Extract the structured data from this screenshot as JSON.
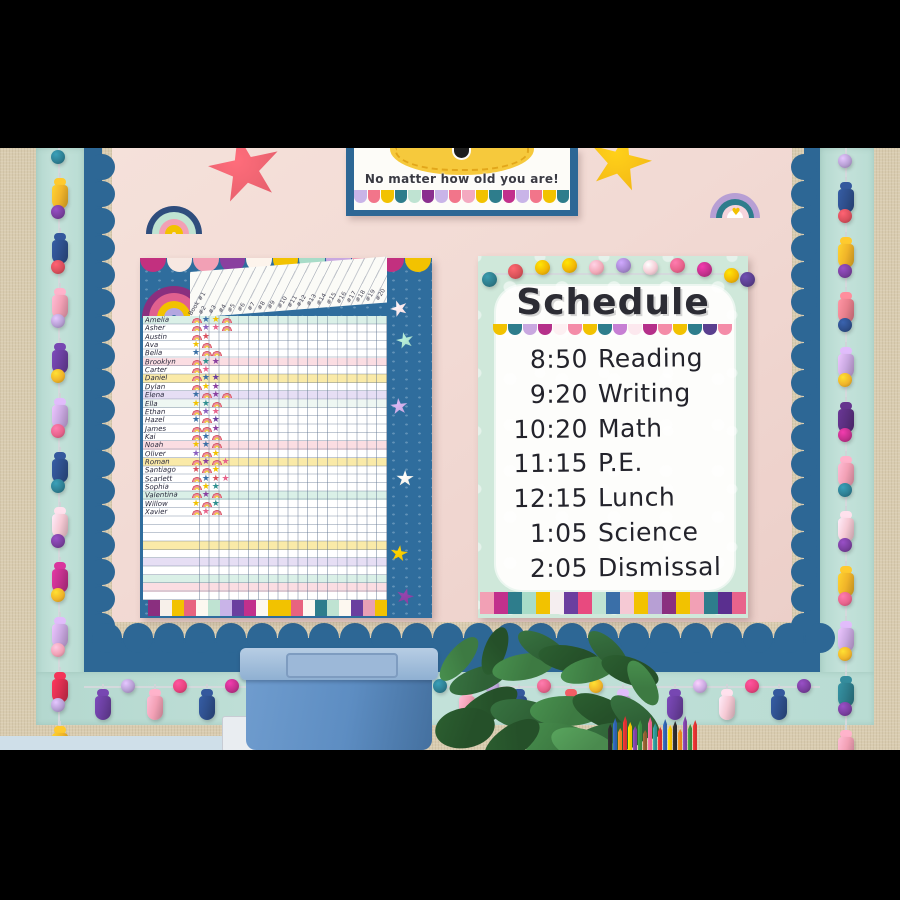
{
  "photo": {
    "wall_color": "#d9ccb0",
    "board_color": "#f3dcd6",
    "border_trim_color": "#2d6795",
    "garland_band_color": "#bfdfd7",
    "string_color": "#d4d9dc"
  },
  "top_poster": {
    "text": "No matter how old you are!",
    "backing_color": "#2d6795",
    "blob_color": "#f6c93c",
    "blob_stitch_color": "#e2a61a",
    "scallops": [
      "#c9b4e8",
      "#f2758a",
      "#f2c200",
      "#2e7d8c",
      "#bfe3d2",
      "#8a2f8f",
      "#c9b4e8",
      "#f2758a",
      "#f4a9c0",
      "#f2c200",
      "#2e7d8c",
      "#c2308c",
      "#c9b4e8",
      "#f2758a",
      "#f2c200",
      "#2e7d8c"
    ]
  },
  "decorations": {
    "star_left_color": "#e8616e",
    "star_right_color": "#f5bb16",
    "rainbow_left_rings": [
      "#2e4d7d",
      "#bfe3d2",
      "#f2a0b5",
      "#f2c200"
    ],
    "rainbow_right_rings": [
      "#b79fd4",
      "#2e7d8c",
      "#f5d4dc",
      "#ffffff"
    ],
    "rainbow_right_heart": "#f2c200",
    "chart_rainbow_rings": [
      "#8a2f7f",
      "#e0608f",
      "#f2c200",
      "#b3a6e0"
    ]
  },
  "chart_poster": {
    "background": "#2f6d9d",
    "top_scallops": [
      "#c2307f",
      "#f7e8e2",
      "#f2a0b5",
      "#8a3f9f",
      "#fdf4ec",
      "#f2c200",
      "#a8dcc8",
      "#c9a8e0",
      "#f2a0b5",
      "#c2307f",
      "#f2c200"
    ],
    "column_headers": [
      "Book #1",
      "#2",
      "#3",
      "#4",
      "#5",
      "#6",
      "#7",
      "#8",
      "#9",
      "#10",
      "#11",
      "#12",
      "#13",
      "#14",
      "#15",
      "#16",
      "#17",
      "#18",
      "#19",
      "#20"
    ],
    "students": [
      {
        "name": "Amelia",
        "tint": "#daf0e7",
        "stickers": [
          "R",
          "S#3a6fa5",
          "S#f2c200",
          "R"
        ]
      },
      {
        "name": "Asher",
        "tint": "#ffffff",
        "stickers": [
          "R",
          "S#8a5fbf",
          "S#e8638c",
          "R"
        ]
      },
      {
        "name": "Austin",
        "tint": "#ffffff",
        "stickers": [
          "R",
          "S#d94f5c"
        ]
      },
      {
        "name": "Ava",
        "tint": "#ffffff",
        "stickers": [
          "S#f2c200",
          "R"
        ]
      },
      {
        "name": "Bella",
        "tint": "#ffffff",
        "stickers": [
          "S#3a6fa5",
          "R",
          "R"
        ]
      },
      {
        "name": "Brooklyn",
        "tint": "#fbdde2",
        "stickers": [
          "R",
          "S#2e8f8f",
          "S#8a3f9f"
        ]
      },
      {
        "name": "Carter",
        "tint": "#ffffff",
        "stickers": [
          "R",
          "S#e8638c"
        ]
      },
      {
        "name": "Daniel",
        "tint": "#faeaa8",
        "stickers": [
          "R",
          "S#3a6fa5",
          "S#6a3f9f"
        ]
      },
      {
        "name": "Dylan",
        "tint": "#ffffff",
        "stickers": [
          "R",
          "S#f2c200",
          "S#8a3f9f"
        ]
      },
      {
        "name": "Elena",
        "tint": "#e6def4",
        "stickers": [
          "S#3a6fa5",
          "R",
          "S#8a3f9f",
          "R"
        ]
      },
      {
        "name": "Ella",
        "tint": "#eef7f2",
        "stickers": [
          "S#f2c200",
          "S#2e8f8f",
          "R"
        ]
      },
      {
        "name": "Ethan",
        "tint": "#ffffff",
        "stickers": [
          "R",
          "S#8a5fbf",
          "S#e8638c"
        ]
      },
      {
        "name": "Hazel",
        "tint": "#ffffff",
        "stickers": [
          "S#3a6fa5",
          "R",
          "S#6a3f9f"
        ]
      },
      {
        "name": "James",
        "tint": "#ffffff",
        "stickers": [
          "R",
          "R",
          "S#8a3f9f"
        ]
      },
      {
        "name": "Kai",
        "tint": "#ffffff",
        "stickers": [
          "R",
          "S#3a6fa5",
          "R"
        ]
      },
      {
        "name": "Noah",
        "tint": "#fbdde2",
        "stickers": [
          "S#f2c200",
          "S#3a6fa5",
          "R"
        ]
      },
      {
        "name": "Oliver",
        "tint": "#ffffff",
        "stickers": [
          "S#8a5fbf",
          "R",
          "S#f2c200"
        ]
      },
      {
        "name": "Roman",
        "tint": "#faeaa8",
        "stickers": [
          "R",
          "S#8a3f9f",
          "R",
          "S#e8638c"
        ]
      },
      {
        "name": "Santiago",
        "tint": "#ffffff",
        "stickers": [
          "S#d94f5c",
          "R",
          "S#f2c200"
        ]
      },
      {
        "name": "Scarlett",
        "tint": "#ffffff",
        "stickers": [
          "R",
          "S#3a6fa5",
          "S#d94f5c",
          "S#e8638c"
        ]
      },
      {
        "name": "Sophia",
        "tint": "#ffffff",
        "stickers": [
          "R",
          "S#f2c200",
          "S#2e8f8f"
        ]
      },
      {
        "name": "Valentina",
        "tint": "#daf0e7",
        "stickers": [
          "R",
          "S#8a3f9f",
          "R"
        ]
      },
      {
        "name": "Willow",
        "tint": "#ffffff",
        "stickers": [
          "S#f2c200",
          "R",
          "S#2e8f8f"
        ]
      },
      {
        "name": "Xavier",
        "tint": "#ffffff",
        "stickers": [
          "R",
          "S#e8638c",
          "R"
        ]
      }
    ],
    "empty_row_tints": [
      "#ffffff",
      "#ffffff",
      "#ffffff",
      "#faeaa8",
      "#ffffff",
      "#e6def4",
      "#ffffff",
      "#daf0e7",
      "#fbdde2",
      "#ffffff"
    ],
    "footer_stripes": [
      "#8a2f7f",
      "#f7f0ea",
      "#f2c200",
      "#e8637f",
      "#fdf8f0",
      "#bfe3d2",
      "#c9b4e8",
      "#6a3f9f",
      "#c2308c",
      "#fdf8f0",
      "#f2c200",
      "#f2c200",
      "#e8637f",
      "#fdf8f0",
      "#2e7d8c",
      "#bfe3d2",
      "#fdf8f0",
      "#6a3f9f",
      "#e8a0b5",
      "#f2c200"
    ],
    "side_stars": [
      "#f7dfe2",
      "#a8dcc8",
      "#c9a8e0",
      "#f4f0e6",
      "#f2c200",
      "#8a3f9f"
    ]
  },
  "schedule_poster": {
    "title": "Schedule",
    "background": "#cfe8da",
    "panel_color": "#fdfdfb",
    "entries": [
      {
        "time": "8:50",
        "subject": "Reading"
      },
      {
        "time": "9:20",
        "subject": "Writing"
      },
      {
        "time": "10:20",
        "subject": "Math"
      },
      {
        "time": "11:15",
        "subject": "P.E."
      },
      {
        "time": "12:15",
        "subject": "Lunch"
      },
      {
        "time": "1:05",
        "subject": "Science"
      },
      {
        "time": "2:05",
        "subject": "Dismissal"
      }
    ],
    "pom_garland": [
      "#2e7d8c",
      "#d9535a",
      "#f2b705",
      "#f2b705",
      "#f2a9b8",
      "#a687d0",
      "#f5cdd6",
      "#e8638c",
      "#c2308c",
      "#f2b705",
      "#5a3f8f"
    ],
    "scallops": [
      "#f2c200",
      "#2e7d8c",
      "#c9a8e0",
      "#b5308a",
      "#fdf0f2",
      "#f48ca8",
      "#f2c200",
      "#2e7d8c",
      "#c77fd4",
      "#fce8ee",
      "#b5308a",
      "#f48ca8",
      "#f2c200",
      "#2e7d8c",
      "#5a3f8f",
      "#f48ca8"
    ],
    "footer_stripes": [
      "#f2a0b5",
      "#c2308c",
      "#2e7d8c",
      "#a8dcc8",
      "#f2c200",
      "#f5eef0",
      "#6a3f9f",
      "#e84a7f",
      "#bfe3d2",
      "#3a6fa8",
      "#f5c9d4",
      "#f2c200",
      "#b79fd4",
      "#8a2f7f",
      "#f2c200",
      "#f2a0b5",
      "#2e7d8c",
      "#5a2f8f",
      "#e8638c"
    ]
  },
  "garlands": {
    "left": [
      "#2e8094",
      "#f0b429",
      "#7a3f9f",
      "#2e4f8c",
      "#d94f5c",
      "#f2a0b5",
      "#b79fd4",
      "#6a3f9f",
      "#f0b429",
      "#c9a8e0",
      "#e8638c",
      "#2e4f8c",
      "#2e8094",
      "#f5c9d4",
      "#7a3f9f",
      "#c2308c",
      "#f0b429",
      "#c9a8e0",
      "#f2a0b5",
      "#d92f4f",
      "#b79fd4",
      "#f0b429"
    ],
    "right": [
      "#b79fd4",
      "#2e4f8c",
      "#d94f5c",
      "#f0b429",
      "#7a3f9f",
      "#e87f8c",
      "#2e4f8c",
      "#c9a8e0",
      "#f0b429",
      "#5a2f7f",
      "#c2308c",
      "#f2a0b5",
      "#2e8094",
      "#f5c9d4",
      "#7a3f9f",
      "#f0b429",
      "#e8638c",
      "#c9a8e0",
      "#f0b429",
      "#2e7d8c",
      "#7a3f9f",
      "#f2a0b5"
    ],
    "bottom": [
      "#6a3f9f",
      "#b79fd4",
      "#f2a0b5",
      "#e8437f",
      "#2e4f8c",
      "#c2308c",
      "#f0b429",
      "#d94f5c",
      "#f5c9d4",
      "#7a3f9f",
      "#c9a8e0",
      "#f0b429",
      "#d9535a",
      "#2e8094",
      "#f2a0b5",
      "#b79fd4",
      "#2e4f8c",
      "#e8638c",
      "#d9535a",
      "#f0b429",
      "#c9a8e0",
      "#f0b429",
      "#6a3f9f",
      "#c9a8e0",
      "#f5c9d4",
      "#e8437f",
      "#2e4f8c",
      "#7a3f9f"
    ]
  },
  "desk": {
    "bin_body_color": "#5d8dc2",
    "bin_lid_color": "#9cb8d8",
    "table_color": "#cfdfe9",
    "tray_color": "#e9edf1",
    "leaf_colors": [
      "#2f6136",
      "#3d7a42",
      "#255029",
      "#4a8a4e"
    ],
    "crayon_colors": [
      "#2a2a2a",
      "#2e5fa8",
      "#e8821e",
      "#d93030",
      "#f2c200",
      "#7a3f9f",
      "#3a8a3f",
      "#8a5a2f",
      "#e8608c",
      "#2e8f8f",
      "#d93030",
      "#2e5fa8",
      "#f2c200",
      "#2a2a2a",
      "#e8821e",
      "#7a3f9f",
      "#3a8a3f",
      "#d93030"
    ]
  }
}
